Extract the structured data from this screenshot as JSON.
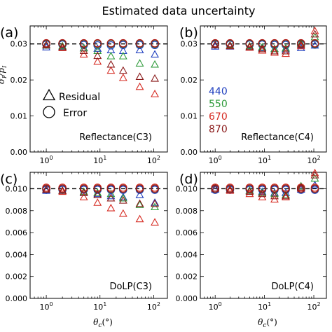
{
  "figure": {
    "title": "Estimated data uncertainty",
    "colors": {
      "440": "#1f3fbf",
      "550": "#2e9a3a",
      "670": "#d62b22",
      "870": "#8b1a1a",
      "dash": "#000000"
    },
    "legend": {
      "residual_label": "Residual",
      "error_label": "Error",
      "wavelengths": [
        "440",
        "550",
        "670",
        "870"
      ]
    }
  },
  "chart_data": [
    {
      "panel": "(a)",
      "type": "scatter",
      "label": "Reflectance(C3)",
      "xscale": "log",
      "xlim": [
        0.5,
        180
      ],
      "ylim": [
        0,
        0.035
      ],
      "xticks": [
        "10^0",
        "10^1",
        "10^2"
      ],
      "yticks": [
        "0.00",
        "0.01",
        "0.02",
        "0.03"
      ],
      "ylabel": "σ_I / p_I",
      "dashed_line": 0.03,
      "x": [
        1,
        2,
        5,
        9,
        16,
        27,
        55,
        105
      ],
      "error": {
        "440": [
          0.0298,
          0.0298,
          0.0297,
          0.0296,
          0.0296,
          0.0297,
          0.0297,
          0.0297
        ],
        "550": [
          0.03,
          0.03,
          0.03,
          0.03,
          0.03,
          0.03,
          0.03,
          0.03
        ],
        "670": [
          0.0302,
          0.0302,
          0.0302,
          0.0302,
          0.0302,
          0.0302,
          0.0302,
          0.0302
        ],
        "870": [
          0.0301,
          0.0301,
          0.0301,
          0.0301,
          0.0301,
          0.0301,
          0.0301,
          0.0301
        ]
      },
      "residual": {
        "440": [
          0.029,
          0.0292,
          0.0288,
          0.0286,
          0.0282,
          0.028,
          0.0282,
          0.027
        ],
        "550": [
          0.0295,
          0.0293,
          0.0287,
          0.028,
          0.0265,
          0.0265,
          0.0245,
          0.0242
        ],
        "670": [
          0.0296,
          0.0288,
          0.027,
          0.025,
          0.0225,
          0.0205,
          0.018,
          0.016
        ],
        "870": [
          0.0296,
          0.029,
          0.028,
          0.0266,
          0.0242,
          0.0225,
          0.0208,
          0.0203
        ]
      }
    },
    {
      "panel": "(b)",
      "type": "scatter",
      "label": "Reflectance(C4)",
      "xscale": "log",
      "xlim": [
        0.5,
        180
      ],
      "ylim": [
        0,
        0.035
      ],
      "xticks": [
        "10^0",
        "10^1",
        "10^2"
      ],
      "yticks": [
        "0.00",
        "0.01",
        "0.02",
        "0.03"
      ],
      "ylabel": "",
      "dashed_line": 0.03,
      "x": [
        1,
        2,
        5,
        9,
        16,
        27,
        55,
        105
      ],
      "error": {
        "440": [
          0.0298,
          0.0298,
          0.0298,
          0.0298,
          0.0297,
          0.0297,
          0.0298,
          0.0298
        ],
        "550": [
          0.03,
          0.03,
          0.03,
          0.03,
          0.03,
          0.03,
          0.03,
          0.03
        ],
        "670": [
          0.0302,
          0.0302,
          0.0302,
          0.0302,
          0.0302,
          0.0302,
          0.0302,
          0.0302
        ],
        "870": [
          0.0301,
          0.0301,
          0.0301,
          0.0301,
          0.0301,
          0.0301,
          0.0301,
          0.0301
        ]
      },
      "residual": {
        "440": [
          0.0292,
          0.0292,
          0.029,
          0.0288,
          0.0285,
          0.0284,
          0.0288,
          0.0295
        ],
        "550": [
          0.0296,
          0.0295,
          0.0293,
          0.029,
          0.0285,
          0.0287,
          0.03,
          0.0318
        ],
        "670": [
          0.0296,
          0.0293,
          0.0289,
          0.0281,
          0.0275,
          0.0272,
          0.0293,
          0.0335
        ],
        "870": [
          0.0296,
          0.0294,
          0.0291,
          0.0285,
          0.0279,
          0.0279,
          0.0297,
          0.0326
        ]
      },
      "wavelength_labels": [
        "440",
        "550",
        "670",
        "870"
      ]
    },
    {
      "panel": "(c)",
      "type": "scatter",
      "label": "DoLP(C3)",
      "xscale": "log",
      "xlim": [
        0.5,
        180
      ],
      "ylim": [
        0,
        0.0115
      ],
      "xticks": [
        "10^0",
        "10^1",
        "10^2"
      ],
      "yticks": [
        "0.000",
        "0.002",
        "0.004",
        "0.006",
        "0.008",
        "0.010"
      ],
      "xlabel": "θ_c (°)",
      "dashed_line": 0.01,
      "x": [
        1,
        2,
        5,
        9,
        16,
        27,
        55,
        105
      ],
      "error": {
        "440": [
          0.0099,
          0.0099,
          0.0099,
          0.0099,
          0.0099,
          0.0099,
          0.0099,
          0.0099
        ],
        "550": [
          0.01,
          0.01,
          0.01,
          0.01,
          0.01,
          0.01,
          0.01,
          0.01
        ],
        "670": [
          0.0101,
          0.0101,
          0.0101,
          0.0101,
          0.0101,
          0.0101,
          0.0101,
          0.0101
        ],
        "870": [
          0.01,
          0.01,
          0.01,
          0.01,
          0.01,
          0.01,
          0.01,
          0.01
        ]
      },
      "residual": {
        "440": [
          0.0098,
          0.0098,
          0.0096,
          0.0095,
          0.0093,
          0.0092,
          0.0094,
          0.0087
        ],
        "550": [
          0.0099,
          0.0098,
          0.0097,
          0.0096,
          0.0095,
          0.0091,
          0.0085,
          0.0083
        ],
        "670": [
          0.0099,
          0.0097,
          0.0092,
          0.0087,
          0.0082,
          0.0077,
          0.0072,
          0.0069
        ],
        "870": [
          0.0099,
          0.0098,
          0.0096,
          0.0094,
          0.0091,
          0.0089,
          0.0086,
          0.0086
        ]
      }
    },
    {
      "panel": "(d)",
      "type": "scatter",
      "label": "DoLP(C4)",
      "xscale": "log",
      "xlim": [
        0.5,
        180
      ],
      "ylim": [
        0,
        0.0115
      ],
      "xticks": [
        "10^0",
        "10^1",
        "10^2"
      ],
      "yticks": [
        "0.000",
        "0.002",
        "0.004",
        "0.006",
        "0.008",
        "0.010"
      ],
      "xlabel": "θ_c (°)",
      "dashed_line": 0.01,
      "x": [
        1,
        2,
        5,
        9,
        16,
        27,
        55,
        105
      ],
      "error": {
        "440": [
          0.0099,
          0.0099,
          0.0099,
          0.0099,
          0.0099,
          0.0099,
          0.0099,
          0.0099
        ],
        "550": [
          0.01,
          0.01,
          0.01,
          0.01,
          0.01,
          0.01,
          0.01,
          0.01
        ],
        "670": [
          0.0101,
          0.0101,
          0.0101,
          0.0101,
          0.0101,
          0.0101,
          0.0101,
          0.0101
        ],
        "870": [
          0.01,
          0.01,
          0.01,
          0.01,
          0.01,
          0.01,
          0.01,
          0.01
        ]
      },
      "residual": {
        "440": [
          0.0099,
          0.0099,
          0.0098,
          0.0097,
          0.0096,
          0.0096,
          0.0099,
          0.0103
        ],
        "550": [
          0.01,
          0.0099,
          0.0098,
          0.0096,
          0.0095,
          0.0094,
          0.0102,
          0.0109
        ],
        "670": [
          0.01,
          0.0098,
          0.0095,
          0.0092,
          0.009,
          0.0092,
          0.01,
          0.0114
        ],
        "870": [
          0.01,
          0.0099,
          0.0097,
          0.0095,
          0.0093,
          0.0093,
          0.0101,
          0.0112
        ]
      }
    }
  ]
}
